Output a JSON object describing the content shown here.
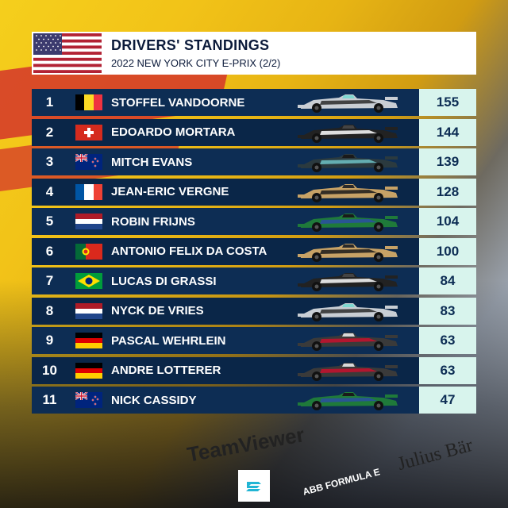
{
  "header": {
    "title": "DRIVERS' STANDINGS",
    "subtitle": "2022 NEW YORK CITY E-PRIX (2/2)",
    "flag": "usa"
  },
  "colors": {
    "row_bg": "#0d2d54",
    "points_bg": "#d8f4ed",
    "accent": "#0b1a3a"
  },
  "drivers": [
    {
      "pos": "1",
      "flag": "belgium",
      "name": "STOFFEL VANDOORNE",
      "car": "mercedes-silver",
      "points": "155"
    },
    {
      "pos": "2",
      "flag": "switzerland",
      "name": "EDOARDO MORTARA",
      "car": "rokit-black",
      "points": "144"
    },
    {
      "pos": "3",
      "flag": "new-zealand",
      "name": "MITCH EVANS",
      "car": "jaguar-teal",
      "points": "139"
    },
    {
      "pos": "4",
      "flag": "france",
      "name": "JEAN-ERIC VERGNE",
      "car": "ds-gold",
      "points": "128"
    },
    {
      "pos": "5",
      "flag": "netherlands",
      "name": "ROBIN FRIJNS",
      "car": "envision-green",
      "points": "104"
    },
    {
      "pos": "6",
      "flag": "portugal",
      "name": "ANTONIO FELIX DA COSTA",
      "car": "ds-gold",
      "points": "100"
    },
    {
      "pos": "7",
      "flag": "brazil",
      "name": "LUCAS DI GRASSI",
      "car": "rokit-black",
      "points": "84"
    },
    {
      "pos": "8",
      "flag": "netherlands",
      "name": "NYCK DE VRIES",
      "car": "mercedes-silver",
      "points": "83"
    },
    {
      "pos": "9",
      "flag": "germany",
      "name": "PASCAL WEHRLEIN",
      "car": "porsche-red",
      "points": "63"
    },
    {
      "pos": "10",
      "flag": "germany",
      "name": "ANDRE LOTTERER",
      "car": "porsche-red",
      "points": "63"
    },
    {
      "pos": "11",
      "flag": "new-zealand",
      "name": "NICK CASSIDY",
      "car": "envision-green",
      "points": "47"
    }
  ],
  "background_brands": {
    "teamviewer": "TeamViewer",
    "julius_baer": "Julius Bär",
    "abb": "ABB FORMULA E"
  }
}
